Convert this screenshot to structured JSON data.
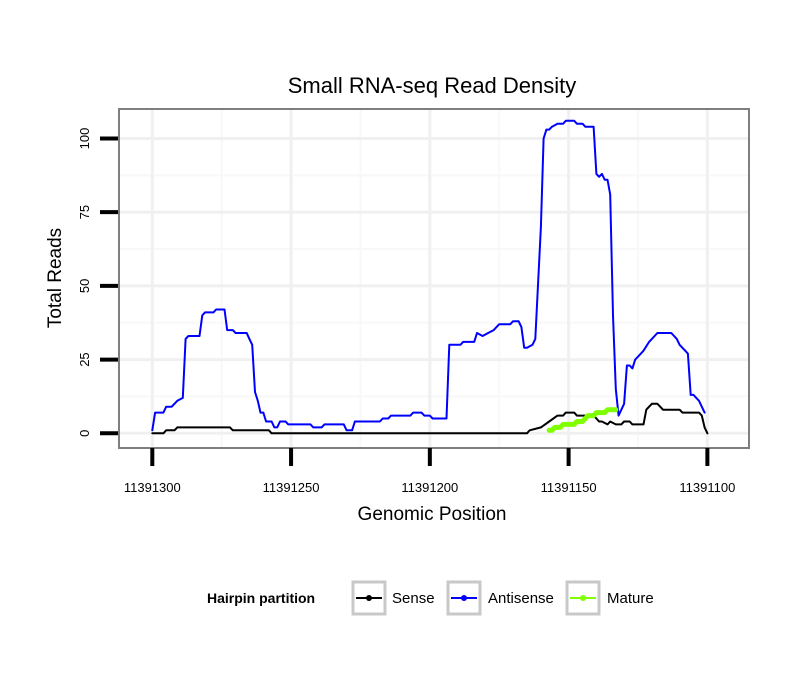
{
  "chart_data": {
    "type": "line",
    "title": "Small RNA-seq Read Density",
    "xlabel": "Genomic Position",
    "ylabel": "Total Reads",
    "x_reversed": true,
    "xlim": [
      11391312,
      11391085
    ],
    "ylim": [
      -5,
      110
    ],
    "x_ticks": [
      11391300,
      11391250,
      11391200,
      11391150,
      11391100
    ],
    "x_tick_labels": [
      "11391300",
      "11391250",
      "11391200",
      "11391150",
      "11391100"
    ],
    "y_ticks": [
      0,
      25,
      50,
      75,
      100
    ],
    "y_tick_labels": [
      "0",
      "25",
      "50",
      "75",
      "100"
    ],
    "grid": true,
    "legend": {
      "title": "Hairpin partition",
      "position": "bottom",
      "entries": [
        "Sense",
        "Antisense",
        "Mature"
      ]
    },
    "series": [
      {
        "name": "Antisense",
        "color": "#0000ff",
        "points": [
          [
            11391300,
            1
          ],
          [
            11391299,
            7
          ],
          [
            11391296,
            7
          ],
          [
            11391295,
            9
          ],
          [
            11391293,
            9
          ],
          [
            11391291,
            11
          ],
          [
            11391289,
            12
          ],
          [
            11391288,
            32
          ],
          [
            11391287,
            33
          ],
          [
            11391283,
            33
          ],
          [
            11391282,
            40
          ],
          [
            11391281,
            41
          ],
          [
            11391278,
            41
          ],
          [
            11391277,
            42
          ],
          [
            11391274,
            42
          ],
          [
            11391273,
            35
          ],
          [
            11391271,
            35
          ],
          [
            11391270,
            34
          ],
          [
            11391266,
            34
          ],
          [
            11391265,
            32
          ],
          [
            11391264,
            30
          ],
          [
            11391263,
            14
          ],
          [
            11391262,
            11
          ],
          [
            11391261,
            7
          ],
          [
            11391260,
            7
          ],
          [
            11391259,
            4
          ],
          [
            11391257,
            4
          ],
          [
            11391256,
            2
          ],
          [
            11391255,
            2
          ],
          [
            11391254,
            4
          ],
          [
            11391252,
            4
          ],
          [
            11391251,
            3
          ],
          [
            11391243,
            3
          ],
          [
            11391242,
            2
          ],
          [
            11391239,
            2
          ],
          [
            11391238,
            3
          ],
          [
            11391231,
            3
          ],
          [
            11391230,
            1
          ],
          [
            11391228,
            1
          ],
          [
            11391227,
            4
          ],
          [
            11391218,
            4
          ],
          [
            11391217,
            5
          ],
          [
            11391215,
            5
          ],
          [
            11391214,
            6
          ],
          [
            11391207,
            6
          ],
          [
            11391206,
            7
          ],
          [
            11391203,
            7
          ],
          [
            11391202,
            6
          ],
          [
            11391200,
            6
          ],
          [
            11391199,
            5
          ],
          [
            11391194,
            5
          ],
          [
            11391193,
            30
          ],
          [
            11391189,
            30
          ],
          [
            11391188,
            31
          ],
          [
            11391184,
            31
          ],
          [
            11391183,
            34
          ],
          [
            11391181,
            33
          ],
          [
            11391179,
            34
          ],
          [
            11391177,
            35
          ],
          [
            11391175,
            37
          ],
          [
            11391171,
            37
          ],
          [
            11391170,
            38
          ],
          [
            11391168,
            38
          ],
          [
            11391167,
            36
          ],
          [
            11391166,
            29
          ],
          [
            11391165,
            29
          ],
          [
            11391163,
            30
          ],
          [
            11391162,
            32
          ],
          [
            11391160,
            70
          ],
          [
            11391159,
            100
          ],
          [
            11391158,
            103
          ],
          [
            11391157,
            103
          ],
          [
            11391156,
            104
          ],
          [
            11391154,
            105
          ],
          [
            11391152,
            105
          ],
          [
            11391151,
            106
          ],
          [
            11391148,
            106
          ],
          [
            11391147,
            105
          ],
          [
            11391145,
            105
          ],
          [
            11391144,
            104
          ],
          [
            11391141,
            104
          ],
          [
            11391140,
            88
          ],
          [
            11391139,
            87
          ],
          [
            11391138,
            88
          ],
          [
            11391137,
            86
          ],
          [
            11391136,
            86
          ],
          [
            11391135,
            81
          ],
          [
            11391134,
            40
          ],
          [
            11391133,
            15
          ],
          [
            11391132,
            6
          ],
          [
            11391130,
            10
          ],
          [
            11391129,
            23
          ],
          [
            11391128,
            23
          ],
          [
            11391127,
            22
          ],
          [
            11391126,
            25
          ],
          [
            11391124,
            27
          ],
          [
            11391123,
            28
          ],
          [
            11391121,
            31
          ],
          [
            11391120,
            32
          ],
          [
            11391119,
            33
          ],
          [
            11391118,
            34
          ],
          [
            11391113,
            34
          ],
          [
            11391111,
            32
          ],
          [
            11391110,
            30
          ],
          [
            11391108,
            28
          ],
          [
            11391107,
            27
          ],
          [
            11391106,
            13
          ],
          [
            11391105,
            13
          ],
          [
            11391103,
            11
          ],
          [
            11391101,
            7
          ]
        ]
      },
      {
        "name": "Sense",
        "color": "#000000",
        "points": [
          [
            11391300,
            0
          ],
          [
            11391296,
            0
          ],
          [
            11391295,
            1
          ],
          [
            11391292,
            1
          ],
          [
            11391291,
            2
          ],
          [
            11391272,
            2
          ],
          [
            11391271,
            1
          ],
          [
            11391258,
            1
          ],
          [
            11391257,
            0
          ],
          [
            11391165,
            0
          ],
          [
            11391164,
            1
          ],
          [
            11391160,
            2
          ],
          [
            11391157,
            4
          ],
          [
            11391154,
            6
          ],
          [
            11391152,
            6
          ],
          [
            11391151,
            7
          ],
          [
            11391148,
            7
          ],
          [
            11391147,
            6
          ],
          [
            11391141,
            6
          ],
          [
            11391140,
            5
          ],
          [
            11391139,
            4
          ],
          [
            11391138,
            4
          ],
          [
            11391136,
            3
          ],
          [
            11391135,
            4
          ],
          [
            11391133,
            3
          ],
          [
            11391131,
            3
          ],
          [
            11391130,
            4
          ],
          [
            11391128,
            4
          ],
          [
            11391127,
            3
          ],
          [
            11391126,
            3
          ],
          [
            11391124,
            3
          ],
          [
            11391123,
            3
          ],
          [
            11391122,
            8
          ],
          [
            11391121,
            9
          ],
          [
            11391120,
            10
          ],
          [
            11391118,
            10
          ],
          [
            11391117,
            9
          ],
          [
            11391116,
            8
          ],
          [
            11391110,
            8
          ],
          [
            11391109,
            7
          ],
          [
            11391103,
            7
          ],
          [
            11391102,
            6
          ],
          [
            11391101,
            2
          ],
          [
            11391100,
            0
          ]
        ]
      },
      {
        "name": "Mature",
        "color": "#7fff00",
        "points": [
          [
            11391157,
            1
          ],
          [
            11391156,
            1
          ],
          [
            11391155,
            2
          ],
          [
            11391153,
            2
          ],
          [
            11391152,
            3
          ],
          [
            11391148,
            3
          ],
          [
            11391147,
            4
          ],
          [
            11391145,
            4
          ],
          [
            11391144,
            5
          ],
          [
            11391143,
            6
          ],
          [
            11391141,
            6
          ],
          [
            11391140,
            7
          ],
          [
            11391137,
            7
          ],
          [
            11391136,
            8
          ],
          [
            11391133,
            8
          ]
        ]
      }
    ]
  }
}
